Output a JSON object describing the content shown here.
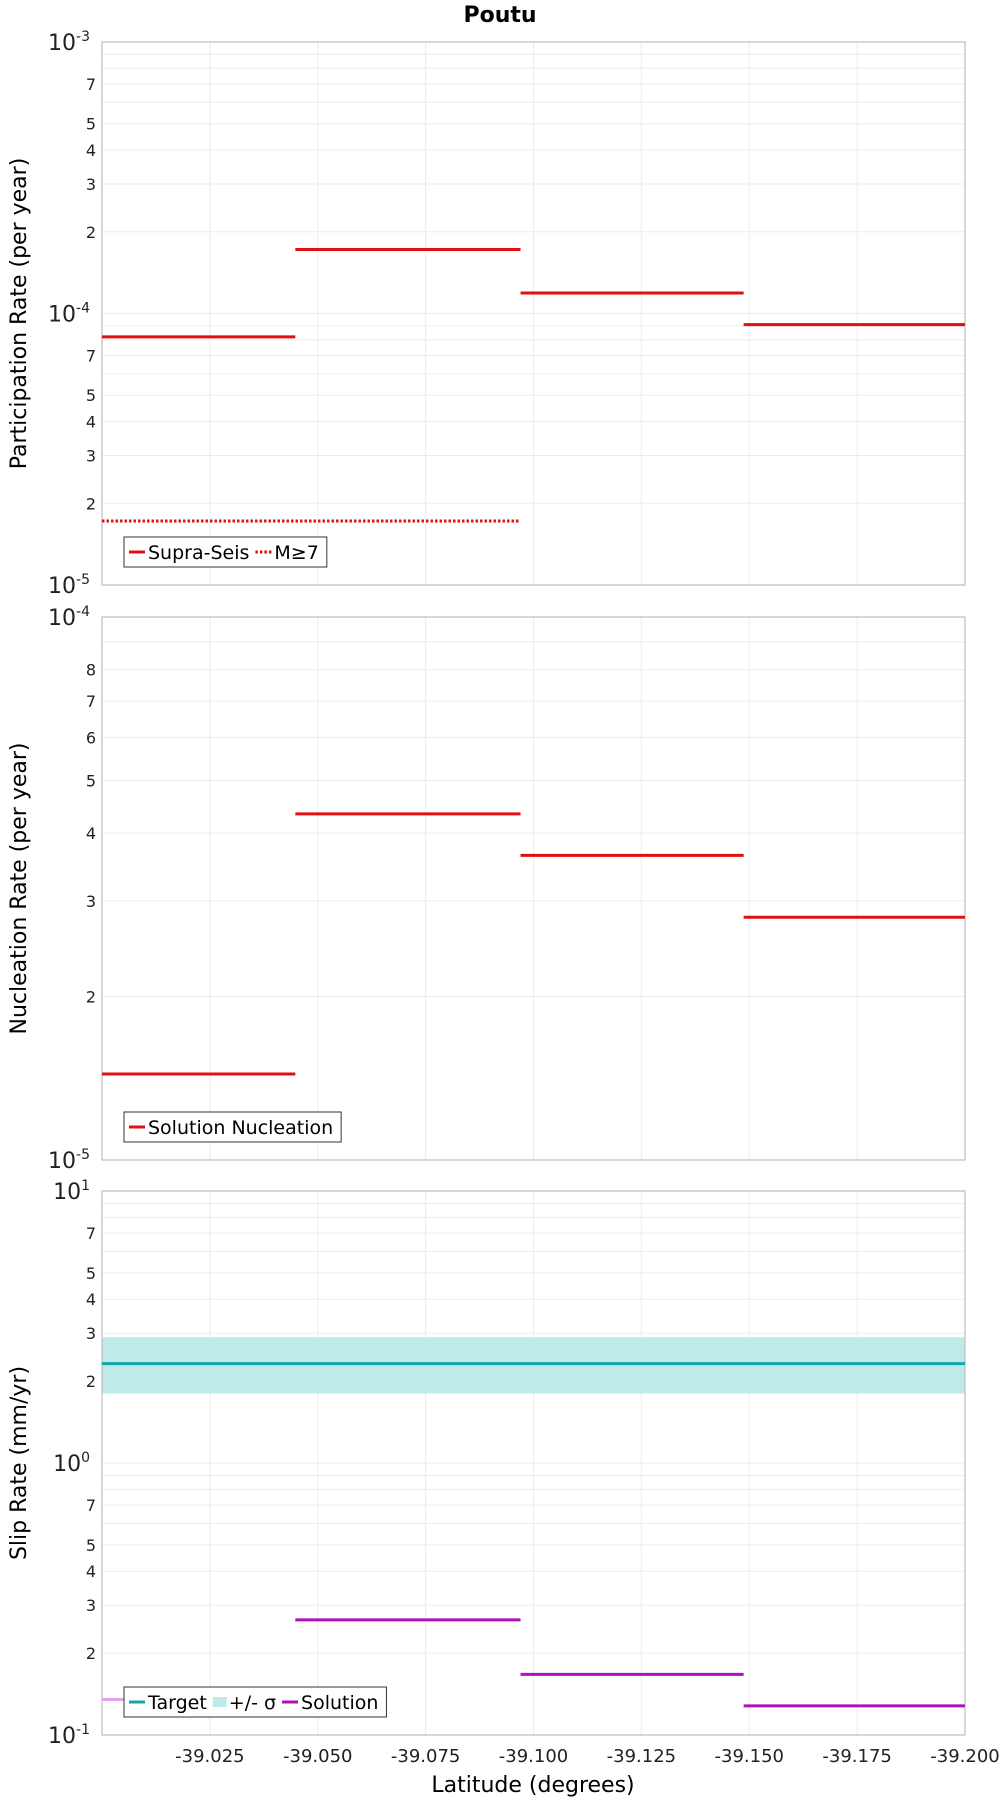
{
  "colors": {
    "supra_seis": "#e01010",
    "m7": "#e01010",
    "solution_nucleation": "#e01010",
    "target": "#17a5a5",
    "sigma_band": "#bfeaea",
    "solution_slip": "#b010b8",
    "solution_slip_first_segment": "#e6a0ea"
  },
  "chart_data": [
    {
      "type": "line",
      "title": "Poutu",
      "ylabel": "Participation Rate (per year)",
      "xlabel": "",
      "xlim": [
        -39.0,
        -39.2
      ],
      "ylim": [
        1e-05,
        0.001
      ],
      "y_scale": "log",
      "x_ticks": [
        "-39.025",
        "-39.050",
        "-39.075",
        "-39.100",
        "-39.125",
        "-39.150",
        "-39.175",
        "-39.200"
      ],
      "legend_position": "bottom-left",
      "series": [
        {
          "name": "Supra-Seis",
          "style": "solid",
          "segments": [
            {
              "x": [
                -39.0,
                -39.0448
              ],
              "y": 8.2e-05
            },
            {
              "x": [
                -39.0448,
                -39.097
              ],
              "y": 0.000172
            },
            {
              "x": [
                -39.097,
                -39.1487
              ],
              "y": 0.000119
            },
            {
              "x": [
                -39.1487,
                -39.2
              ],
              "y": 9.1e-05
            }
          ]
        },
        {
          "name": "M≥7",
          "style": "dotted",
          "segments": [
            {
              "x": [
                -39.0,
                -39.097
              ],
              "y": 1.72e-05
            }
          ]
        }
      ]
    },
    {
      "type": "line",
      "title": "",
      "ylabel": "Nucleation Rate (per year)",
      "xlabel": "",
      "xlim": [
        -39.0,
        -39.2
      ],
      "ylim": [
        1e-05,
        0.0001
      ],
      "y_scale": "log",
      "x_ticks": [
        "-39.025",
        "-39.050",
        "-39.075",
        "-39.100",
        "-39.125",
        "-39.150",
        "-39.175",
        "-39.200"
      ],
      "legend_position": "bottom-left",
      "series": [
        {
          "name": "Solution Nucleation",
          "style": "solid",
          "segments": [
            {
              "x": [
                -39.0,
                -39.0448
              ],
              "y": 1.44e-05
            },
            {
              "x": [
                -39.0448,
                -39.097
              ],
              "y": 4.34e-05
            },
            {
              "x": [
                -39.097,
                -39.1487
              ],
              "y": 3.64e-05
            },
            {
              "x": [
                -39.1487,
                -39.2
              ],
              "y": 2.8e-05
            }
          ]
        }
      ]
    },
    {
      "type": "line",
      "title": "",
      "ylabel": "Slip Rate (mm/yr)",
      "xlabel": "Latitude (degrees)",
      "xlim": [
        -39.0,
        -39.2
      ],
      "ylim": [
        0.1,
        10
      ],
      "y_scale": "log",
      "x_ticks": [
        "-39.025",
        "-39.050",
        "-39.075",
        "-39.100",
        "-39.125",
        "-39.150",
        "-39.175",
        "-39.200"
      ],
      "legend_position": "bottom-left",
      "band": {
        "name": "+/- σ",
        "y": [
          1.8,
          2.9
        ]
      },
      "series": [
        {
          "name": "Target",
          "style": "solid",
          "segments": [
            {
              "x": [
                -39.0,
                -39.2
              ],
              "y": 2.32
            }
          ]
        },
        {
          "name": "Solution",
          "style": "solid",
          "segments": [
            {
              "x": [
                -39.0,
                -39.0448
              ],
              "y": 0.135
            },
            {
              "x": [
                -39.0448,
                -39.097
              ],
              "y": 0.265
            },
            {
              "x": [
                -39.097,
                -39.1487
              ],
              "y": 0.167
            },
            {
              "x": [
                -39.1487,
                -39.2
              ],
              "y": 0.128
            }
          ]
        }
      ]
    }
  ]
}
